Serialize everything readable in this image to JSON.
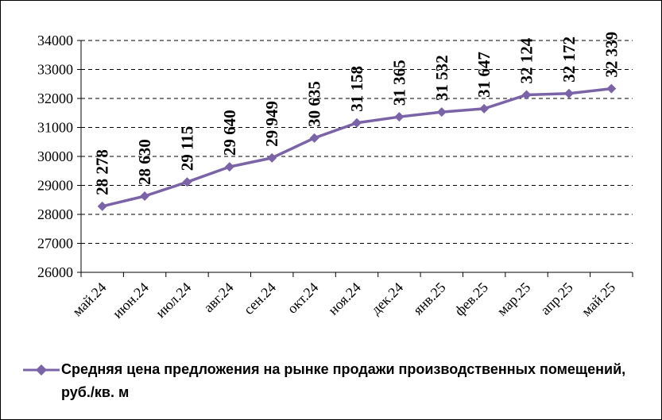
{
  "chart_data": {
    "type": "line",
    "categories": [
      "май.24",
      "июн.24",
      "июл.24",
      "авг.24",
      "сен.24",
      "окт.24",
      "ноя.24",
      "дек.24",
      "янв.25",
      "фев.25",
      "мар.25",
      "апр.25",
      "май.25"
    ],
    "series": [
      {
        "name": "Средняя цена предложения на рынке продажи производственных помещений,  руб./кв. м",
        "values": [
          28278,
          28630,
          29115,
          29640,
          29949,
          30635,
          31158,
          31365,
          31532,
          31647,
          32124,
          32172,
          32339
        ],
        "labels": [
          "28 278",
          "28 630",
          "29 115",
          "29 640",
          "29 949",
          "30 635",
          "31 158",
          "31 365",
          "31 532",
          "31 647",
          "32 124",
          "32 172",
          "32 339"
        ],
        "color": "#7b63a8",
        "marker": "diamond"
      }
    ],
    "ylim": [
      26000,
      34000
    ],
    "yticks": [
      26000,
      27000,
      28000,
      29000,
      30000,
      31000,
      32000,
      33000,
      34000
    ],
    "ytick_labels": [
      "26000",
      "27000",
      "28000",
      "29000",
      "30000",
      "31000",
      "32000",
      "33000",
      "34000"
    ],
    "grid": true,
    "grid_style": "dashed",
    "legend_position": "bottom",
    "title": "",
    "xlabel": "",
    "ylabel": ""
  },
  "legend": {
    "text": "Средняя цена предложения на рынке продажи производственных помещений,  руб./кв. м"
  }
}
